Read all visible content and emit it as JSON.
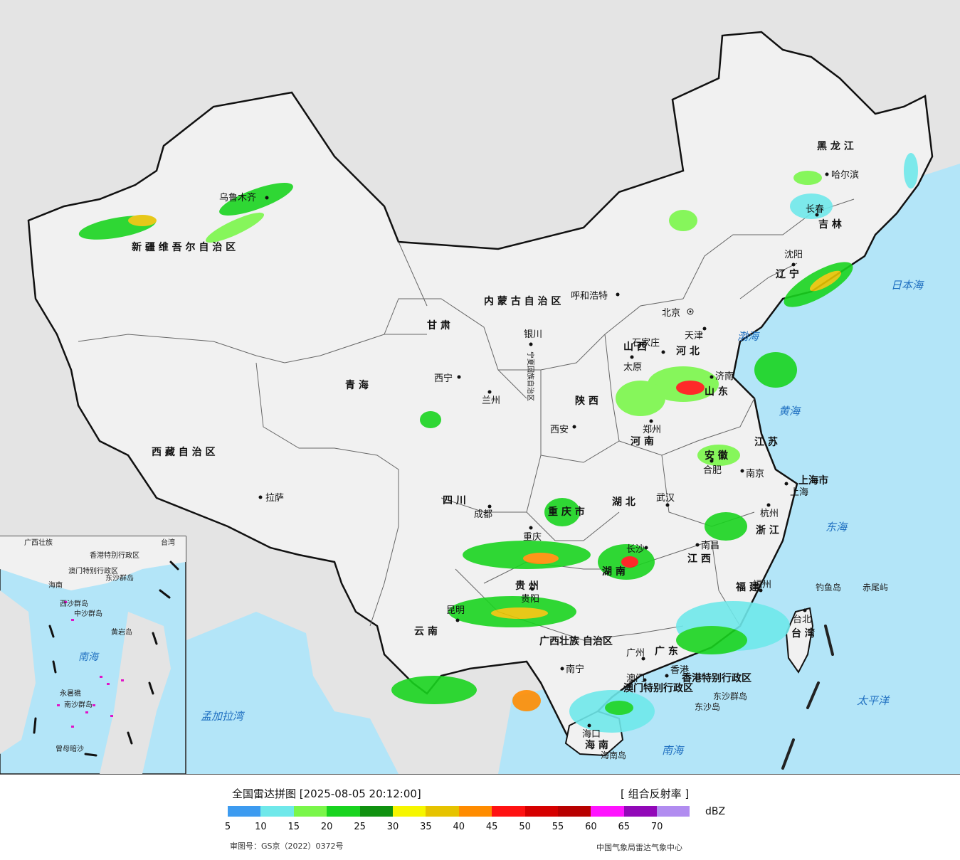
{
  "map": {
    "provinces": [
      {
        "name": "新疆维吾尔自治区",
        "label": "新 疆 维 吾 尔 自 治 区"
      },
      {
        "name": "西藏自治区",
        "label": "西 藏 自 治 区"
      },
      {
        "name": "青海",
        "label": "青    海"
      },
      {
        "name": "甘肃",
        "label": "甘 肃"
      },
      {
        "name": "内蒙古自治区",
        "label": "内 蒙 古 自 治 区"
      },
      {
        "name": "黑龙江",
        "label": "黑 龙 江"
      },
      {
        "name": "吉林",
        "label": "吉 林"
      },
      {
        "name": "辽宁",
        "label": "辽 宁"
      },
      {
        "name": "河北",
        "label": "河 北"
      },
      {
        "name": "山西",
        "label": "山 西"
      },
      {
        "name": "山东",
        "label": "山 东"
      },
      {
        "name": "河南",
        "label": "河 南"
      },
      {
        "name": "陕西",
        "label": "陕 西"
      },
      {
        "name": "四川",
        "label": "四 川"
      },
      {
        "name": "重庆市",
        "label": "重 庆 市"
      },
      {
        "name": "湖北",
        "label": "湖 北"
      },
      {
        "name": "湖南",
        "label": "湖 南"
      },
      {
        "name": "江苏",
        "label": "江 苏"
      },
      {
        "name": "安徽",
        "label": "安 徽"
      },
      {
        "name": "浙江",
        "label": "浙 江"
      },
      {
        "name": "上海市",
        "label": "上海市"
      },
      {
        "name": "江西",
        "label": "江 西"
      },
      {
        "name": "福建",
        "label": "福 建"
      },
      {
        "name": "贵州",
        "label": "贵 州"
      },
      {
        "name": "云南",
        "label": "云 南"
      },
      {
        "name": "广西壮族自治区",
        "label": "广西壮族 自治区"
      },
      {
        "name": "广东",
        "label": "广 东"
      },
      {
        "name": "海南",
        "label": "海 南"
      },
      {
        "name": "台湾",
        "label": "台 湾"
      },
      {
        "name": "宁夏回族自治区",
        "label": "宁夏回族自治区"
      },
      {
        "name": "香港特别行政区",
        "label": "香港特别行政区"
      },
      {
        "name": "澳门特别行政区",
        "label": "澳门特别行政区"
      }
    ],
    "cities": [
      "乌鲁木齐",
      "拉萨",
      "西宁",
      "兰州",
      "银川",
      "呼和浩特",
      "北京",
      "天津",
      "石家庄",
      "太原",
      "济南",
      "郑州",
      "西安",
      "成都",
      "重庆",
      "武汉",
      "合肥",
      "南京",
      "上海",
      "杭州",
      "长沙",
      "南昌",
      "福州",
      "台北",
      "贵阳",
      "昆明",
      "南宁",
      "广州",
      "香港",
      "澳门",
      "海口",
      "哈尔滨",
      "长春",
      "沈阳"
    ],
    "seas": [
      "渤海",
      "黄海",
      "东海",
      "南海",
      "日本海",
      "太平洋",
      "孟加拉湾"
    ],
    "islands": [
      "钓鱼岛",
      "赤尾屿",
      "东沙群岛",
      "东沙岛",
      "海南岛"
    ],
    "inset": {
      "labels": [
        "广西壮族",
        "台湾",
        "香港特别行政区",
        "澳门特别行政区",
        "东沙群岛",
        "海南",
        "西沙群岛",
        "中沙群岛",
        "黄岩岛",
        "南海",
        "永暑礁",
        "南沙群岛",
        "曾母暗沙"
      ]
    },
    "colors": {
      "ocean": "#b3e5f8",
      "land": "#ececec",
      "foreign": "#e4e4e4",
      "border": "#111111"
    }
  },
  "footer": {
    "title": "全国雷达拼图 [2025-08-05 20:12:00]",
    "product": "[ 组合反射率 ]",
    "unit": "dBZ",
    "approval": "审图号：GS京（2022）0372号",
    "org": "中国气象局雷达气象中心",
    "legend": {
      "colors": [
        "#3d9bf0",
        "#6fe8ea",
        "#7af64a",
        "#19d41f",
        "#109210",
        "#f6f600",
        "#e6c300",
        "#ff8c00",
        "#ff1212",
        "#d60000",
        "#b80000",
        "#ff13ff",
        "#9208b8",
        "#b18cf0"
      ],
      "ticks": [
        "5",
        "10",
        "15",
        "20",
        "25",
        "30",
        "35",
        "40",
        "45",
        "50",
        "55",
        "60",
        "65",
        "70"
      ]
    }
  }
}
